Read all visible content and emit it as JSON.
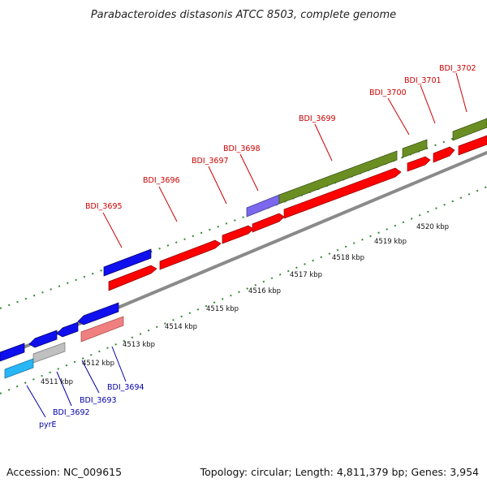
{
  "title": "Parabacteroides distasonis ATCC 8503, complete genome",
  "footer": {
    "accession": "Accession: NC_009615",
    "topology": "Topology: circular; Length: 4,811,379 bp; Genes: 3,954"
  },
  "colors": {
    "backbone": "#8a8a8a",
    "tick_dot": "#2e8b2e",
    "forward_red": "#ff0000",
    "reverse_blue": "#1010ee",
    "olive": "#6b8e23",
    "lavender": "#7b68ee",
    "pink": "#f08080",
    "grey": "#c0c0c0",
    "cyan": "#29b6f6",
    "label_red": "#cc0000",
    "label_blue": "#0000aa"
  },
  "ruler": {
    "labels": [
      "4511 kbp",
      "4512 kbp",
      "4513 kbp",
      "4514 kbp",
      "4515 kbp",
      "4516 kbp",
      "4517 kbp",
      "4518 kbp",
      "4519 kbp",
      "4520 kbp"
    ]
  },
  "gene_labels": {
    "top": [
      "BDI_3695",
      "BDI_3696",
      "BDI_3697",
      "BDI_3698",
      "BDI_3699",
      "BDI_3700",
      "BDI_3701",
      "BDI_3702"
    ],
    "bottom": [
      "BDI_3694",
      "BDI_3693",
      "BDI_3692",
      "pyrE"
    ]
  }
}
